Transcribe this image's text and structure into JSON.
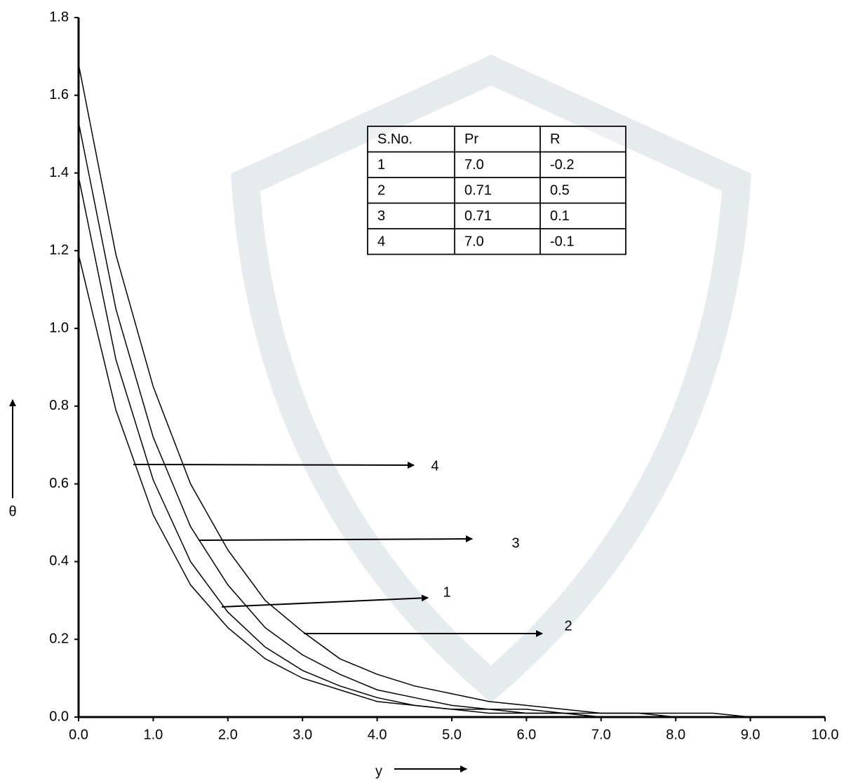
{
  "chart_data": {
    "type": "line",
    "x_label": "y",
    "y_label": "θ",
    "x": [
      0,
      0.5,
      1,
      1.5,
      2,
      2.5,
      3,
      3.5,
      4,
      4.5,
      5,
      5.5,
      6,
      6.5,
      7,
      7.5,
      8,
      8.5,
      9
    ],
    "series": [
      {
        "name": "2",
        "color": "#000000",
        "values": [
          1.68,
          1.19,
          0.85,
          0.6,
          0.43,
          0.3,
          0.22,
          0.15,
          0.11,
          0.08,
          0.06,
          0.04,
          0.03,
          0.02,
          0.01,
          0.01,
          0.01,
          0.01,
          0.0
        ]
      },
      {
        "name": "3",
        "color": "#000000",
        "values": [
          1.53,
          1.05,
          0.72,
          0.49,
          0.34,
          0.23,
          0.16,
          0.11,
          0.07,
          0.05,
          0.03,
          0.02,
          0.02,
          0.01,
          0.01,
          0.01,
          0.0,
          0.0,
          0.0
        ]
      },
      {
        "name": "1",
        "color": "#000000",
        "values": [
          1.39,
          0.92,
          0.61,
          0.4,
          0.27,
          0.18,
          0.12,
          0.08,
          0.05,
          0.03,
          0.02,
          0.02,
          0.01,
          0.01,
          0.0,
          0.0,
          0.0,
          0.0,
          0.0
        ]
      },
      {
        "name": "4",
        "color": "#000000",
        "values": [
          1.19,
          0.79,
          0.52,
          0.34,
          0.23,
          0.15,
          0.1,
          0.07,
          0.04,
          0.03,
          0.02,
          0.01,
          0.01,
          0.01,
          0.0,
          0.0,
          0.0,
          0.0,
          0.0
        ]
      }
    ],
    "xlim": [
      0,
      10
    ],
    "ylim": [
      0,
      1.8
    ],
    "xticks": [
      {
        "value": 0,
        "label": "0.0"
      },
      {
        "value": 1,
        "label": "1.0"
      },
      {
        "value": 2,
        "label": "2.0"
      },
      {
        "value": 3,
        "label": "3.0"
      },
      {
        "value": 4,
        "label": "4.0"
      },
      {
        "value": 5,
        "label": "5.0"
      },
      {
        "value": 6,
        "label": "6.0"
      },
      {
        "value": 7,
        "label": "7.0"
      },
      {
        "value": 8,
        "label": "8.0"
      },
      {
        "value": 9,
        "label": "9.0"
      },
      {
        "value": 10,
        "label": "10.0"
      }
    ],
    "yticks": [
      {
        "value": 0,
        "label": "0.0"
      },
      0.2,
      0.4,
      0.6,
      0.8,
      {
        "value": 1,
        "label": "1.0"
      },
      1.2,
      1.4,
      1.6,
      1.8
    ],
    "legend_table": {
      "header": [
        "S.No.",
        "Pr",
        "R"
      ],
      "rows": [
        [
          "1",
          "7.0",
          "-0.2"
        ],
        [
          "2",
          "0.71",
          "0.5"
        ],
        [
          "3",
          "0.71",
          "0.1"
        ],
        [
          "4",
          "7.0",
          "-0.1"
        ]
      ]
    }
  }
}
